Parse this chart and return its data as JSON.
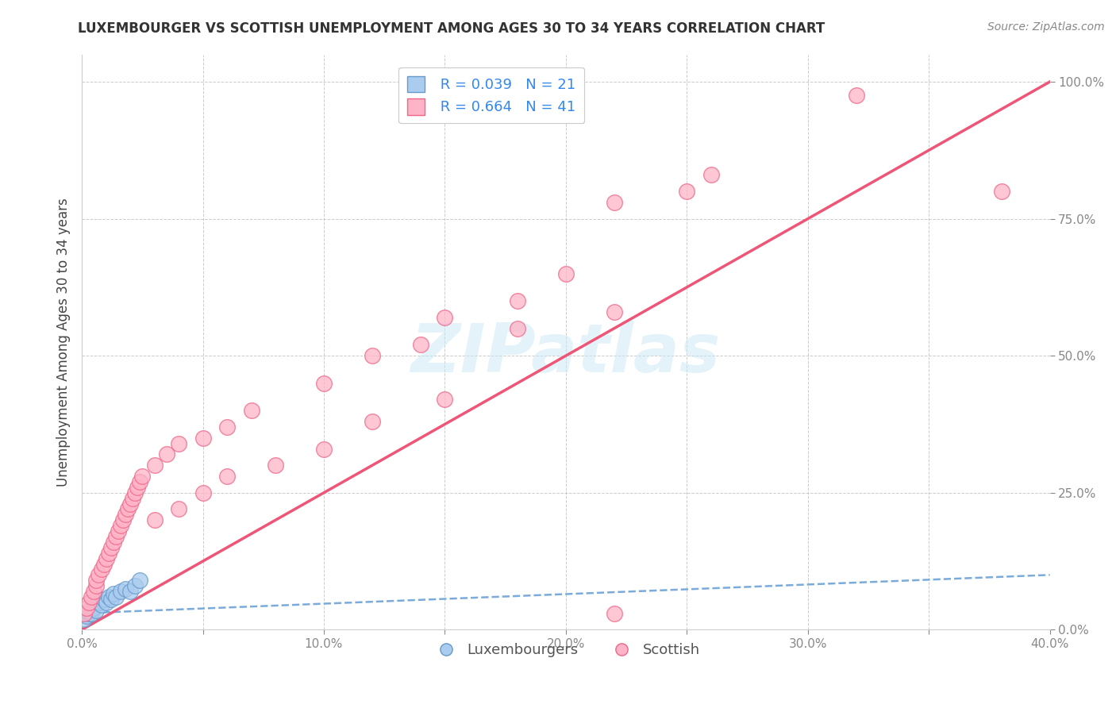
{
  "title": "LUXEMBOURGER VS SCOTTISH UNEMPLOYMENT AMONG AGES 30 TO 34 YEARS CORRELATION CHART",
  "source": "Source: ZipAtlas.com",
  "ylabel": "Unemployment Among Ages 30 to 34 years",
  "xlim": [
    0.0,
    0.4
  ],
  "ylim": [
    0.0,
    1.05
  ],
  "xtick_labels": [
    "0.0%",
    "",
    "10.0%",
    "",
    "20.0%",
    "",
    "30.0%",
    "",
    "40.0%"
  ],
  "xtick_values": [
    0.0,
    0.05,
    0.1,
    0.15,
    0.2,
    0.25,
    0.3,
    0.35,
    0.4
  ],
  "ytick_labels": [
    "0.0%",
    "25.0%",
    "50.0%",
    "75.0%",
    "100.0%"
  ],
  "ytick_values": [
    0.0,
    0.25,
    0.5,
    0.75,
    1.0
  ],
  "lux_color": "#aaccee",
  "scot_color": "#ffb3c6",
  "lux_edge_color": "#6699cc",
  "scot_edge_color": "#ee6688",
  "lux_line_color": "#7aabdb",
  "scot_line_color": "#ee5577",
  "lux_R": 0.039,
  "lux_N": 21,
  "scot_R": 0.664,
  "scot_N": 41,
  "watermark": "ZIPatlas",
  "background_color": "#ffffff",
  "grid_color": "#aaaaaa",
  "lux_scatter_x": [
    0.001,
    0.002,
    0.003,
    0.003,
    0.004,
    0.004,
    0.005,
    0.006,
    0.007,
    0.008,
    0.009,
    0.01,
    0.011,
    0.012,
    0.013,
    0.014,
    0.016,
    0.018,
    0.02,
    0.022,
    0.024
  ],
  "lux_scatter_y": [
    0.02,
    0.025,
    0.03,
    0.035,
    0.03,
    0.04,
    0.04,
    0.035,
    0.05,
    0.045,
    0.055,
    0.05,
    0.06,
    0.055,
    0.065,
    0.06,
    0.07,
    0.075,
    0.07,
    0.08,
    0.09
  ],
  "scot_scatter_x": [
    0.001,
    0.002,
    0.003,
    0.004,
    0.005,
    0.006,
    0.006,
    0.007,
    0.008,
    0.009,
    0.01,
    0.011,
    0.012,
    0.013,
    0.014,
    0.015,
    0.016,
    0.017,
    0.018,
    0.019,
    0.02,
    0.021,
    0.022,
    0.023,
    0.024,
    0.025,
    0.03,
    0.035,
    0.04,
    0.05,
    0.06,
    0.07,
    0.1,
    0.12,
    0.14,
    0.15,
    0.18,
    0.2,
    0.22,
    0.25,
    0.26
  ],
  "scot_scatter_y": [
    0.03,
    0.04,
    0.05,
    0.06,
    0.07,
    0.08,
    0.09,
    0.1,
    0.11,
    0.12,
    0.13,
    0.14,
    0.15,
    0.16,
    0.17,
    0.18,
    0.19,
    0.2,
    0.21,
    0.22,
    0.23,
    0.24,
    0.25,
    0.26,
    0.27,
    0.28,
    0.3,
    0.32,
    0.34,
    0.35,
    0.37,
    0.4,
    0.45,
    0.5,
    0.52,
    0.57,
    0.6,
    0.65,
    0.78,
    0.8,
    0.83
  ],
  "scot_extra_x": [
    0.03,
    0.04,
    0.05,
    0.06,
    0.08,
    0.1,
    0.12,
    0.15,
    0.18,
    0.22
  ],
  "scot_extra_y": [
    0.2,
    0.22,
    0.25,
    0.28,
    0.3,
    0.33,
    0.38,
    0.42,
    0.55,
    0.58
  ],
  "scot_top_x": [
    0.32
  ],
  "scot_top_y": [
    0.975
  ],
  "scot_high1_x": [
    0.38
  ],
  "scot_high1_y": [
    0.8
  ],
  "scot_mid_x": [
    0.22
  ],
  "scot_mid_y": [
    0.03
  ],
  "lux_line_x": [
    0.0,
    0.4
  ],
  "lux_line_y": [
    0.03,
    0.1
  ],
  "scot_line_x": [
    0.0,
    0.4
  ],
  "scot_line_y": [
    0.0,
    1.0
  ]
}
